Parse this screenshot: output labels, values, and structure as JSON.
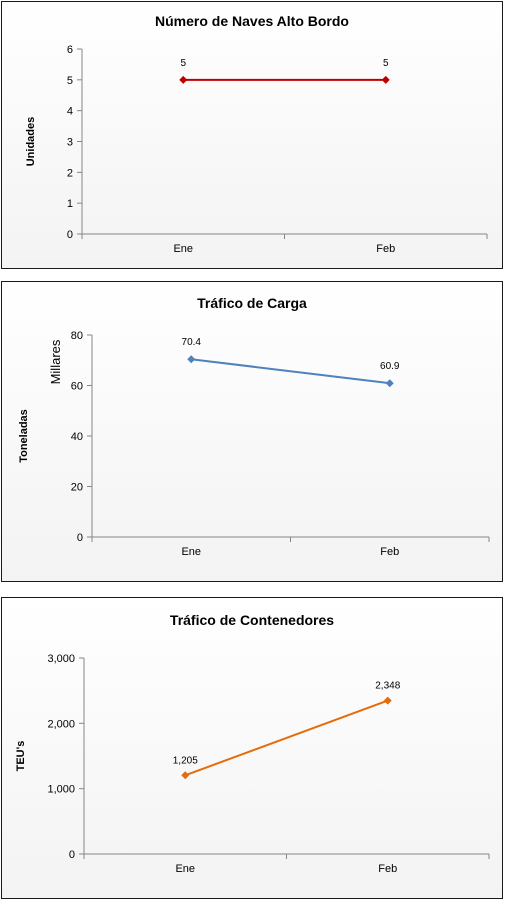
{
  "chart_data": [
    {
      "type": "line",
      "title": "Número de Naves Alto Bordo",
      "ylabel": "Unidades",
      "categories": [
        "Ene",
        "Feb"
      ],
      "series": [
        {
          "values": [
            5,
            5
          ]
        }
      ],
      "data_labels": [
        "5",
        "5"
      ],
      "ylim": [
        0,
        6
      ],
      "yticks": [
        0,
        1,
        2,
        3,
        4,
        5,
        6
      ],
      "ytick_labels": [
        "0",
        "1",
        "2",
        "3",
        "4",
        "5",
        "6"
      ],
      "color": "#c00000",
      "grid": false
    },
    {
      "type": "line",
      "title": "Tráfico de Carga",
      "ylabel": "Toneladas",
      "unit_label": "Millares",
      "categories": [
        "Ene",
        "Feb"
      ],
      "series": [
        {
          "values": [
            70.4,
            60.9
          ]
        }
      ],
      "data_labels": [
        "70.4",
        "60.9"
      ],
      "ylim": [
        0,
        80
      ],
      "yticks": [
        0,
        20,
        40,
        60,
        80
      ],
      "ytick_labels": [
        "0",
        "20",
        "40",
        "60",
        "80"
      ],
      "color": "#4f81bd",
      "grid": false
    },
    {
      "type": "line",
      "title": "Tráfico de Contenedores",
      "ylabel": "TEU's",
      "categories": [
        "Ene",
        "Feb"
      ],
      "series": [
        {
          "values": [
            1205,
            2348
          ]
        }
      ],
      "data_labels": [
        "1,205",
        "2,348"
      ],
      "ylim": [
        0,
        3000
      ],
      "yticks": [
        0,
        1000,
        2000,
        3000
      ],
      "ytick_labels": [
        "0",
        "1,000",
        "2,000",
        "3,000"
      ],
      "color": "#e46c0a",
      "grid": false
    }
  ]
}
